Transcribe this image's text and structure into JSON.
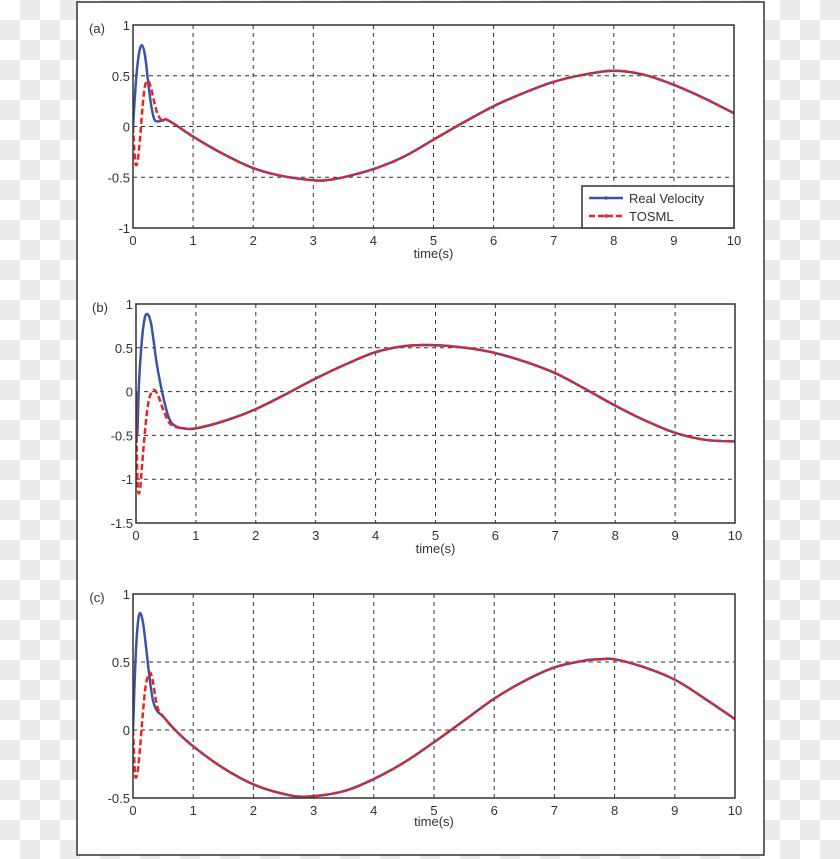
{
  "chart_data": [
    {
      "type": "line",
      "panel_label": "(a)",
      "xlabel": "time(s)",
      "ylabel": "",
      "xlim": [
        0,
        10
      ],
      "ylim": [
        -1,
        1
      ],
      "xticks": [
        "0",
        "1",
        "2",
        "3",
        "4",
        "5",
        "6",
        "7",
        "8",
        "9",
        "10"
      ],
      "yticks": [
        "-1",
        "-0.5",
        "0",
        "0.5",
        "1"
      ],
      "grid": true,
      "legend": {
        "placement": "bottom-right",
        "entries": [
          "Real Velocity",
          "TOSML"
        ]
      },
      "series": [
        {
          "name": "Real Velocity",
          "color": "#3a55a8",
          "style": "solid",
          "x": [
            0,
            0.05,
            0.1,
            0.15,
            0.2,
            0.25,
            0.3,
            0.35,
            0.4,
            0.5,
            0.55,
            0.7,
            1,
            1.5,
            2,
            2.5,
            3,
            3.2,
            3.5,
            4,
            4.5,
            5,
            5.5,
            6,
            6.5,
            7,
            7.5,
            8,
            8.5,
            9,
            9.5,
            10
          ],
          "y": [
            0,
            0.45,
            0.72,
            0.8,
            0.7,
            0.45,
            0.22,
            0.08,
            0.05,
            0.06,
            0.07,
            0.02,
            -0.1,
            -0.27,
            -0.41,
            -0.49,
            -0.53,
            -0.53,
            -0.5,
            -0.42,
            -0.3,
            -0.13,
            0.04,
            0.2,
            0.33,
            0.44,
            0.51,
            0.55,
            0.51,
            0.41,
            0.28,
            0.13
          ]
        },
        {
          "name": "TOSML",
          "color": "#ee2222",
          "style": "dashed",
          "x": [
            0,
            0.03,
            0.05,
            0.08,
            0.12,
            0.16,
            0.2,
            0.25,
            0.3,
            0.35,
            0.4,
            0.45,
            0.5,
            0.55,
            0.7,
            1,
            1.5,
            2,
            2.5,
            3,
            3.2,
            3.5,
            4,
            4.5,
            5,
            5.5,
            6,
            6.5,
            7,
            7.5,
            8,
            8.5,
            9,
            9.5,
            10
          ],
          "y": [
            0,
            -0.3,
            -0.38,
            -0.33,
            -0.1,
            0.2,
            0.4,
            0.45,
            0.38,
            0.25,
            0.14,
            0.08,
            0.06,
            0.07,
            0.02,
            -0.1,
            -0.27,
            -0.41,
            -0.49,
            -0.53,
            -0.53,
            -0.5,
            -0.42,
            -0.3,
            -0.13,
            0.04,
            0.2,
            0.33,
            0.44,
            0.51,
            0.55,
            0.51,
            0.41,
            0.28,
            0.13
          ]
        }
      ]
    },
    {
      "type": "line",
      "panel_label": "(b)",
      "xlabel": "time(s)",
      "ylabel": "",
      "xlim": [
        0,
        10
      ],
      "ylim": [
        -1.5,
        1
      ],
      "xticks": [
        "0",
        "1",
        "2",
        "3",
        "4",
        "5",
        "6",
        "7",
        "8",
        "9",
        "10"
      ],
      "yticks": [
        "-1.5",
        "-1",
        "-0.5",
        "0",
        "0.5",
        "1"
      ],
      "grid": true,
      "series": [
        {
          "name": "Real Velocity",
          "color": "#3a55a8",
          "style": "solid",
          "x": [
            0,
            0.02,
            0.05,
            0.1,
            0.15,
            0.2,
            0.25,
            0.3,
            0.35,
            0.45,
            0.55,
            0.65,
            0.8,
            1,
            1.5,
            2,
            2.5,
            3,
            3.5,
            4,
            4.5,
            5,
            5.5,
            6,
            6.5,
            7,
            7.5,
            8,
            8.5,
            9,
            9.5,
            10
          ],
          "y": [
            0,
            -0.5,
            0.1,
            0.6,
            0.85,
            0.88,
            0.78,
            0.55,
            0.3,
            -0.05,
            -0.3,
            -0.39,
            -0.42,
            -0.42,
            -0.33,
            -0.2,
            -0.03,
            0.15,
            0.31,
            0.45,
            0.52,
            0.53,
            0.5,
            0.44,
            0.34,
            0.21,
            0.03,
            -0.16,
            -0.33,
            -0.47,
            -0.55,
            -0.57
          ]
        },
        {
          "name": "TOSML",
          "color": "#ee2222",
          "style": "dashed",
          "x": [
            0,
            0.02,
            0.04,
            0.07,
            0.1,
            0.15,
            0.2,
            0.25,
            0.3,
            0.35,
            0.4,
            0.45,
            0.55,
            0.65,
            0.8,
            1,
            1.5,
            2,
            2.5,
            3,
            3.5,
            4,
            4.5,
            5,
            5.5,
            6,
            6.5,
            7,
            7.5,
            8,
            8.5,
            9,
            9.5,
            10
          ],
          "y": [
            0,
            -0.9,
            -1.15,
            -1.1,
            -0.85,
            -0.45,
            -0.15,
            -0.02,
            0.02,
            -0.02,
            -0.1,
            -0.2,
            -0.35,
            -0.4,
            -0.42,
            -0.42,
            -0.33,
            -0.2,
            -0.03,
            0.15,
            0.31,
            0.45,
            0.52,
            0.53,
            0.5,
            0.44,
            0.34,
            0.21,
            0.03,
            -0.16,
            -0.33,
            -0.47,
            -0.55,
            -0.57
          ]
        }
      ]
    },
    {
      "type": "line",
      "panel_label": "(c)",
      "xlabel": "time(s)",
      "ylabel": "",
      "xlim": [
        0,
        10
      ],
      "ylim": [
        -0.5,
        1
      ],
      "xticks": [
        "0",
        "1",
        "2",
        "3",
        "4",
        "5",
        "6",
        "7",
        "8",
        "9",
        "10"
      ],
      "yticks": [
        "-0.5",
        "0",
        "0.5",
        "1"
      ],
      "grid": true,
      "series": [
        {
          "name": "Real Velocity",
          "color": "#3a55a8",
          "style": "solid",
          "x": [
            0,
            0.04,
            0.08,
            0.12,
            0.17,
            0.22,
            0.27,
            0.33,
            0.4,
            0.5,
            0.7,
            1,
            1.5,
            2,
            2.5,
            2.9,
            3.5,
            4,
            4.5,
            5,
            5.5,
            6,
            6.5,
            7,
            7.5,
            7.75,
            8,
            8.5,
            9,
            9.5,
            10
          ],
          "y": [
            0,
            0.5,
            0.78,
            0.86,
            0.78,
            0.6,
            0.4,
            0.22,
            0.14,
            0.1,
            0,
            -0.12,
            -0.28,
            -0.4,
            -0.47,
            -0.49,
            -0.45,
            -0.36,
            -0.24,
            -0.09,
            0.07,
            0.23,
            0.36,
            0.46,
            0.51,
            0.52,
            0.52,
            0.46,
            0.37,
            0.23,
            0.08
          ]
        },
        {
          "name": "TOSML",
          "color": "#ee2222",
          "style": "dashed",
          "x": [
            0,
            0.03,
            0.05,
            0.08,
            0.12,
            0.16,
            0.21,
            0.27,
            0.32,
            0.38,
            0.42,
            0.5,
            0.7,
            1,
            1.5,
            2,
            2.5,
            2.9,
            3.5,
            4,
            4.5,
            5,
            5.5,
            6,
            6.5,
            7,
            7.5,
            7.75,
            8,
            8.5,
            9,
            9.5,
            10
          ],
          "y": [
            0,
            -0.3,
            -0.35,
            -0.3,
            -0.12,
            0.1,
            0.32,
            0.42,
            0.38,
            0.22,
            0.15,
            0.1,
            0,
            -0.12,
            -0.28,
            -0.4,
            -0.47,
            -0.49,
            -0.45,
            -0.36,
            -0.24,
            -0.09,
            0.07,
            0.23,
            0.36,
            0.46,
            0.51,
            0.52,
            0.52,
            0.46,
            0.37,
            0.23,
            0.08
          ]
        }
      ]
    }
  ]
}
